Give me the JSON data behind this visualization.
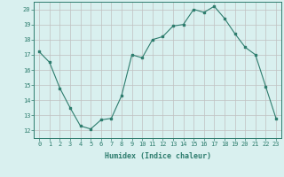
{
  "x": [
    0,
    1,
    2,
    3,
    4,
    5,
    6,
    7,
    8,
    9,
    10,
    11,
    12,
    13,
    14,
    15,
    16,
    17,
    18,
    19,
    20,
    21,
    22,
    23
  ],
  "y": [
    17.2,
    16.5,
    14.8,
    13.5,
    12.3,
    12.1,
    12.7,
    12.8,
    14.3,
    17.0,
    16.8,
    18.0,
    18.2,
    18.9,
    19.0,
    20.0,
    19.8,
    20.2,
    19.4,
    18.4,
    17.5,
    17.0,
    14.9,
    12.8
  ],
  "line_color": "#2e7d6e",
  "bg_color": "#d9f0ef",
  "grid_color": "#c0c0c0",
  "xlabel": "Humidex (Indice chaleur)",
  "yticks": [
    12,
    13,
    14,
    15,
    16,
    17,
    18,
    19,
    20
  ],
  "xlim": [
    -0.5,
    23.5
  ],
  "ylim": [
    11.5,
    20.5
  ],
  "tick_color": "#2e7d6e",
  "label_color": "#2e7d6e",
  "tick_fontsize": 5.0,
  "xlabel_fontsize": 6.0
}
